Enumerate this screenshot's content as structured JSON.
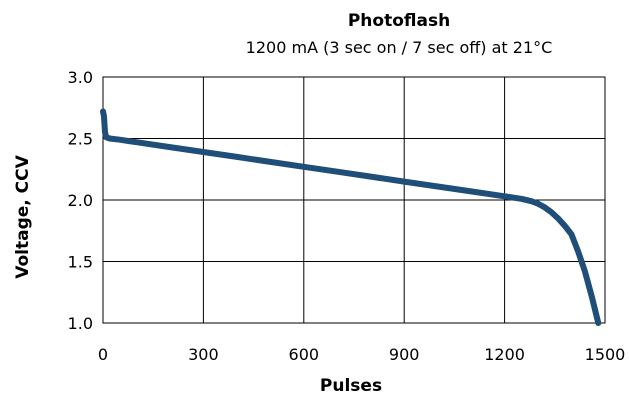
{
  "chart_data": {
    "type": "line",
    "title": "Photoflash",
    "subtitle": "1200 mA (3 sec on / 7 sec  off) at 21°C",
    "xlabel": "Pulses",
    "ylabel": "Voltage, CCV",
    "xlim": [
      0,
      1500
    ],
    "ylim": [
      1.0,
      3.0
    ],
    "xticks": [
      0,
      300,
      600,
      900,
      1200,
      1500
    ],
    "yticks": [
      1.0,
      1.5,
      2.0,
      2.5,
      3.0
    ],
    "xtick_labels": [
      "0",
      "300",
      "600",
      "900",
      "1200",
      "1500"
    ],
    "ytick_labels": [
      "1.0",
      "1.5",
      "2.0",
      "2.5",
      "3.0"
    ],
    "grid": true,
    "line_color": "#1f4e79",
    "series": [
      {
        "x": [
          0,
          3,
          6,
          10,
          20,
          50,
          100,
          200,
          300,
          400,
          500,
          600,
          700,
          800,
          900,
          1000,
          1100,
          1200,
          1250,
          1280,
          1300,
          1320,
          1340,
          1360,
          1380,
          1400,
          1420,
          1440,
          1460,
          1480
        ],
        "y": [
          2.72,
          2.68,
          2.55,
          2.51,
          2.5,
          2.49,
          2.47,
          2.43,
          2.39,
          2.35,
          2.31,
          2.27,
          2.23,
          2.19,
          2.15,
          2.11,
          2.07,
          2.03,
          2.01,
          1.99,
          1.97,
          1.94,
          1.9,
          1.85,
          1.79,
          1.72,
          1.58,
          1.42,
          1.22,
          1.0
        ]
      }
    ]
  }
}
